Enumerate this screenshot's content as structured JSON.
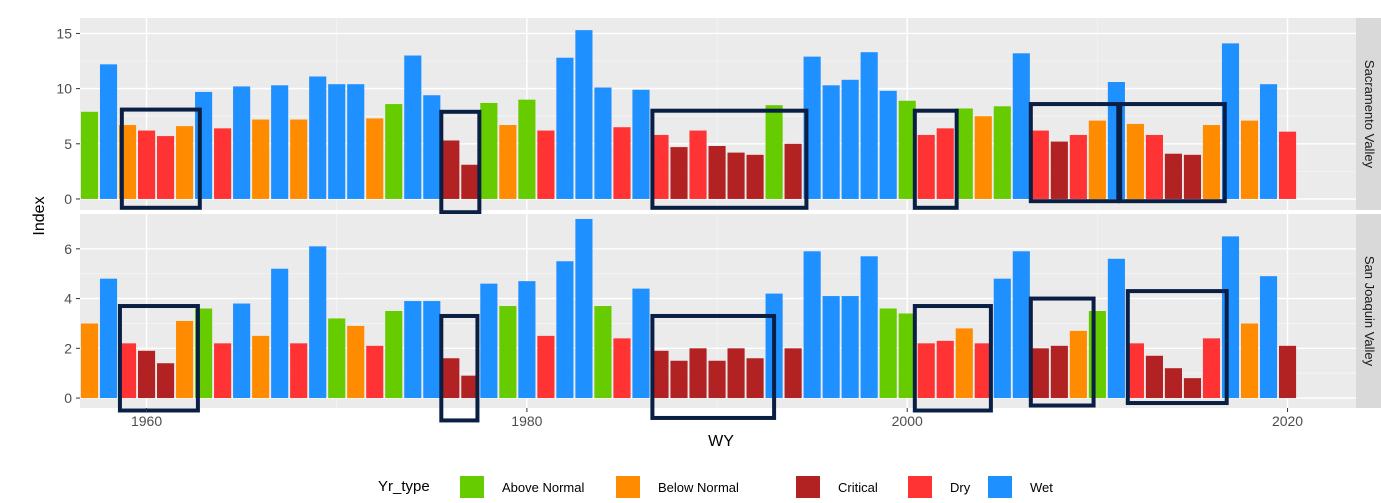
{
  "chart_data": {
    "type": "bar",
    "title": "",
    "xlabel": "WY",
    "ylabel": "Index",
    "legend_title": "Yr_type",
    "legend_position": "bottom",
    "grid": true,
    "colors": {
      "Above Normal": "#66cc00",
      "Below Normal": "#ff8c00",
      "Critical": "#b22222",
      "Dry": "#ff3333",
      "Wet": "#1e90ff"
    },
    "legend": [
      {
        "key": "Above Normal",
        "label": "Above Normal"
      },
      {
        "key": "Below Normal",
        "label": "Below Normal"
      },
      {
        "key": "Critical",
        "label": "Critical"
      },
      {
        "key": "Dry",
        "label": "Dry"
      },
      {
        "key": "Wet",
        "label": "Wet"
      }
    ],
    "x_ticks": [
      1960,
      1980,
      2000,
      2020
    ],
    "xlim": [
      1956.5,
      2023.6
    ],
    "highlight_box_color": "#0a1f44",
    "panels": [
      {
        "name": "Sacramento Valley",
        "ylim": [
          -1,
          16.4
        ],
        "y_ticks": [
          0,
          5,
          10,
          15
        ],
        "bars": [
          {
            "year": 1957,
            "value": 7.9,
            "type": "Above Normal"
          },
          {
            "year": 1958,
            "value": 12.2,
            "type": "Wet"
          },
          {
            "year": 1959,
            "value": 6.7,
            "type": "Below Normal"
          },
          {
            "year": 1960,
            "value": 6.2,
            "type": "Dry"
          },
          {
            "year": 1961,
            "value": 5.7,
            "type": "Dry"
          },
          {
            "year": 1962,
            "value": 6.6,
            "type": "Below Normal"
          },
          {
            "year": 1963,
            "value": 9.7,
            "type": "Wet"
          },
          {
            "year": 1964,
            "value": 6.4,
            "type": "Dry"
          },
          {
            "year": 1965,
            "value": 10.2,
            "type": "Wet"
          },
          {
            "year": 1966,
            "value": 7.2,
            "type": "Below Normal"
          },
          {
            "year": 1967,
            "value": 10.3,
            "type": "Wet"
          },
          {
            "year": 1968,
            "value": 7.2,
            "type": "Below Normal"
          },
          {
            "year": 1969,
            "value": 11.1,
            "type": "Wet"
          },
          {
            "year": 1970,
            "value": 10.4,
            "type": "Wet"
          },
          {
            "year": 1971,
            "value": 10.4,
            "type": "Wet"
          },
          {
            "year": 1972,
            "value": 7.3,
            "type": "Below Normal"
          },
          {
            "year": 1973,
            "value": 8.6,
            "type": "Above Normal"
          },
          {
            "year": 1974,
            "value": 13.0,
            "type": "Wet"
          },
          {
            "year": 1975,
            "value": 9.4,
            "type": "Wet"
          },
          {
            "year": 1976,
            "value": 5.3,
            "type": "Critical"
          },
          {
            "year": 1977,
            "value": 3.1,
            "type": "Critical"
          },
          {
            "year": 1978,
            "value": 8.7,
            "type": "Above Normal"
          },
          {
            "year": 1979,
            "value": 6.7,
            "type": "Below Normal"
          },
          {
            "year": 1980,
            "value": 9.0,
            "type": "Above Normal"
          },
          {
            "year": 1981,
            "value": 6.2,
            "type": "Dry"
          },
          {
            "year": 1982,
            "value": 12.8,
            "type": "Wet"
          },
          {
            "year": 1983,
            "value": 15.3,
            "type": "Wet"
          },
          {
            "year": 1984,
            "value": 10.1,
            "type": "Wet"
          },
          {
            "year": 1985,
            "value": 6.5,
            "type": "Dry"
          },
          {
            "year": 1986,
            "value": 9.9,
            "type": "Wet"
          },
          {
            "year": 1987,
            "value": 5.8,
            "type": "Dry"
          },
          {
            "year": 1988,
            "value": 4.7,
            "type": "Critical"
          },
          {
            "year": 1989,
            "value": 6.2,
            "type": "Dry"
          },
          {
            "year": 1990,
            "value": 4.8,
            "type": "Critical"
          },
          {
            "year": 1991,
            "value": 4.2,
            "type": "Critical"
          },
          {
            "year": 1992,
            "value": 4.0,
            "type": "Critical"
          },
          {
            "year": 1993,
            "value": 8.5,
            "type": "Above Normal"
          },
          {
            "year": 1994,
            "value": 5.0,
            "type": "Critical"
          },
          {
            "year": 1995,
            "value": 12.9,
            "type": "Wet"
          },
          {
            "year": 1996,
            "value": 10.3,
            "type": "Wet"
          },
          {
            "year": 1997,
            "value": 10.8,
            "type": "Wet"
          },
          {
            "year": 1998,
            "value": 13.3,
            "type": "Wet"
          },
          {
            "year": 1999,
            "value": 9.8,
            "type": "Wet"
          },
          {
            "year": 2000,
            "value": 8.9,
            "type": "Above Normal"
          },
          {
            "year": 2001,
            "value": 5.8,
            "type": "Dry"
          },
          {
            "year": 2002,
            "value": 6.4,
            "type": "Dry"
          },
          {
            "year": 2003,
            "value": 8.2,
            "type": "Above Normal"
          },
          {
            "year": 2004,
            "value": 7.5,
            "type": "Below Normal"
          },
          {
            "year": 2005,
            "value": 8.4,
            "type": "Above Normal"
          },
          {
            "year": 2006,
            "value": 13.2,
            "type": "Wet"
          },
          {
            "year": 2007,
            "value": 6.2,
            "type": "Dry"
          },
          {
            "year": 2008,
            "value": 5.2,
            "type": "Critical"
          },
          {
            "year": 2009,
            "value": 5.8,
            "type": "Dry"
          },
          {
            "year": 2010,
            "value": 7.1,
            "type": "Below Normal"
          },
          {
            "year": 2011,
            "value": 10.6,
            "type": "Wet"
          },
          {
            "year": 2012,
            "value": 6.8,
            "type": "Below Normal"
          },
          {
            "year": 2013,
            "value": 5.8,
            "type": "Dry"
          },
          {
            "year": 2014,
            "value": 4.1,
            "type": "Critical"
          },
          {
            "year": 2015,
            "value": 4.0,
            "type": "Critical"
          },
          {
            "year": 2016,
            "value": 6.7,
            "type": "Below Normal"
          },
          {
            "year": 2017,
            "value": 14.1,
            "type": "Wet"
          },
          {
            "year": 2018,
            "value": 7.1,
            "type": "Below Normal"
          },
          {
            "year": 2019,
            "value": 10.4,
            "type": "Wet"
          },
          {
            "year": 2020,
            "value": 6.1,
            "type": "Dry"
          }
        ],
        "highlights": [
          {
            "from": 1958.7,
            "to": 1962.8,
            "ymin": -0.8,
            "ymax": 8.1
          },
          {
            "from": 1975.5,
            "to": 1977.5,
            "ymin": -1.2,
            "ymax": 7.9
          },
          {
            "from": 1986.6,
            "to": 1994.7,
            "ymin": -0.8,
            "ymax": 8.0
          },
          {
            "from": 2000.4,
            "to": 2002.6,
            "ymin": -0.8,
            "ymax": 8.0
          },
          {
            "from": 2006.5,
            "to": 2011.1,
            "ymin": -0.2,
            "ymax": 8.6
          },
          {
            "from": 2011.2,
            "to": 2016.7,
            "ymin": -0.2,
            "ymax": 8.6
          }
        ]
      },
      {
        "name": "San Joaquin Valley",
        "ylim": [
          -0.4,
          7.4
        ],
        "y_ticks": [
          0,
          2,
          4,
          6
        ],
        "bars": [
          {
            "year": 1957,
            "value": 3.0,
            "type": "Below Normal"
          },
          {
            "year": 1958,
            "value": 4.8,
            "type": "Wet"
          },
          {
            "year": 1959,
            "value": 2.2,
            "type": "Dry"
          },
          {
            "year": 1960,
            "value": 1.9,
            "type": "Critical"
          },
          {
            "year": 1961,
            "value": 1.4,
            "type": "Critical"
          },
          {
            "year": 1962,
            "value": 3.1,
            "type": "Below Normal"
          },
          {
            "year": 1963,
            "value": 3.6,
            "type": "Above Normal"
          },
          {
            "year": 1964,
            "value": 2.2,
            "type": "Dry"
          },
          {
            "year": 1965,
            "value": 3.8,
            "type": "Wet"
          },
          {
            "year": 1966,
            "value": 2.5,
            "type": "Below Normal"
          },
          {
            "year": 1967,
            "value": 5.2,
            "type": "Wet"
          },
          {
            "year": 1968,
            "value": 2.2,
            "type": "Dry"
          },
          {
            "year": 1969,
            "value": 6.1,
            "type": "Wet"
          },
          {
            "year": 1970,
            "value": 3.2,
            "type": "Above Normal"
          },
          {
            "year": 1971,
            "value": 2.9,
            "type": "Below Normal"
          },
          {
            "year": 1972,
            "value": 2.1,
            "type": "Dry"
          },
          {
            "year": 1973,
            "value": 3.5,
            "type": "Above Normal"
          },
          {
            "year": 1974,
            "value": 3.9,
            "type": "Wet"
          },
          {
            "year": 1975,
            "value": 3.9,
            "type": "Wet"
          },
          {
            "year": 1976,
            "value": 1.6,
            "type": "Critical"
          },
          {
            "year": 1977,
            "value": 0.9,
            "type": "Critical"
          },
          {
            "year": 1978,
            "value": 4.6,
            "type": "Wet"
          },
          {
            "year": 1979,
            "value": 3.7,
            "type": "Above Normal"
          },
          {
            "year": 1980,
            "value": 4.7,
            "type": "Wet"
          },
          {
            "year": 1981,
            "value": 2.5,
            "type": "Dry"
          },
          {
            "year": 1982,
            "value": 5.5,
            "type": "Wet"
          },
          {
            "year": 1983,
            "value": 7.2,
            "type": "Wet"
          },
          {
            "year": 1984,
            "value": 3.7,
            "type": "Above Normal"
          },
          {
            "year": 1985,
            "value": 2.4,
            "type": "Dry"
          },
          {
            "year": 1986,
            "value": 4.4,
            "type": "Wet"
          },
          {
            "year": 1987,
            "value": 1.9,
            "type": "Critical"
          },
          {
            "year": 1988,
            "value": 1.5,
            "type": "Critical"
          },
          {
            "year": 1989,
            "value": 2.0,
            "type": "Critical"
          },
          {
            "year": 1990,
            "value": 1.5,
            "type": "Critical"
          },
          {
            "year": 1991,
            "value": 2.0,
            "type": "Critical"
          },
          {
            "year": 1992,
            "value": 1.6,
            "type": "Critical"
          },
          {
            "year": 1993,
            "value": 4.2,
            "type": "Wet"
          },
          {
            "year": 1994,
            "value": 2.0,
            "type": "Critical"
          },
          {
            "year": 1995,
            "value": 5.9,
            "type": "Wet"
          },
          {
            "year": 1996,
            "value": 4.1,
            "type": "Wet"
          },
          {
            "year": 1997,
            "value": 4.1,
            "type": "Wet"
          },
          {
            "year": 1998,
            "value": 5.7,
            "type": "Wet"
          },
          {
            "year": 1999,
            "value": 3.6,
            "type": "Above Normal"
          },
          {
            "year": 2000,
            "value": 3.4,
            "type": "Above Normal"
          },
          {
            "year": 2001,
            "value": 2.2,
            "type": "Dry"
          },
          {
            "year": 2002,
            "value": 2.3,
            "type": "Dry"
          },
          {
            "year": 2003,
            "value": 2.8,
            "type": "Below Normal"
          },
          {
            "year": 2004,
            "value": 2.2,
            "type": "Dry"
          },
          {
            "year": 2005,
            "value": 4.8,
            "type": "Wet"
          },
          {
            "year": 2006,
            "value": 5.9,
            "type": "Wet"
          },
          {
            "year": 2007,
            "value": 2.0,
            "type": "Critical"
          },
          {
            "year": 2008,
            "value": 2.1,
            "type": "Critical"
          },
          {
            "year": 2009,
            "value": 2.7,
            "type": "Below Normal"
          },
          {
            "year": 2010,
            "value": 3.5,
            "type": "Above Normal"
          },
          {
            "year": 2011,
            "value": 5.6,
            "type": "Wet"
          },
          {
            "year": 2012,
            "value": 2.2,
            "type": "Dry"
          },
          {
            "year": 2013,
            "value": 1.7,
            "type": "Critical"
          },
          {
            "year": 2014,
            "value": 1.2,
            "type": "Critical"
          },
          {
            "year": 2015,
            "value": 0.8,
            "type": "Critical"
          },
          {
            "year": 2016,
            "value": 2.4,
            "type": "Dry"
          },
          {
            "year": 2017,
            "value": 6.5,
            "type": "Wet"
          },
          {
            "year": 2018,
            "value": 3.0,
            "type": "Below Normal"
          },
          {
            "year": 2019,
            "value": 4.9,
            "type": "Wet"
          },
          {
            "year": 2020,
            "value": 2.1,
            "type": "Critical"
          }
        ],
        "highlights": [
          {
            "from": 1958.6,
            "to": 1962.7,
            "ymin": -0.5,
            "ymax": 3.7
          },
          {
            "from": 1975.5,
            "to": 1977.4,
            "ymin": -0.9,
            "ymax": 3.3
          },
          {
            "from": 1986.6,
            "to": 1993.0,
            "ymin": -0.8,
            "ymax": 3.3
          },
          {
            "from": 2000.4,
            "to": 2004.4,
            "ymin": -0.5,
            "ymax": 3.7
          },
          {
            "from": 2006.5,
            "to": 2009.8,
            "ymin": -0.3,
            "ymax": 4.0
          },
          {
            "from": 2011.6,
            "to": 2016.8,
            "ymin": -0.2,
            "ymax": 4.3
          }
        ]
      }
    ]
  }
}
